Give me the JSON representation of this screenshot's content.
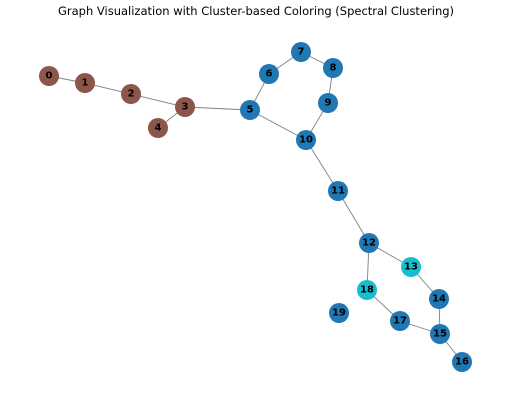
{
  "figure": {
    "title": "Graph Visualization with Cluster-based Coloring (Spectral Clustering)"
  },
  "colors": {
    "cluster_brown": "#8c564b",
    "cluster_blue": "#1f77b4",
    "cluster_cyan": "#17becf",
    "edge": "#808080",
    "label": "#000000"
  },
  "graph": {
    "nodes": [
      {
        "id": "0",
        "cluster": "cluster_brown"
      },
      {
        "id": "1",
        "cluster": "cluster_brown"
      },
      {
        "id": "2",
        "cluster": "cluster_brown"
      },
      {
        "id": "3",
        "cluster": "cluster_brown"
      },
      {
        "id": "4",
        "cluster": "cluster_brown"
      },
      {
        "id": "5",
        "cluster": "cluster_blue"
      },
      {
        "id": "6",
        "cluster": "cluster_blue"
      },
      {
        "id": "7",
        "cluster": "cluster_blue"
      },
      {
        "id": "8",
        "cluster": "cluster_blue"
      },
      {
        "id": "9",
        "cluster": "cluster_blue"
      },
      {
        "id": "10",
        "cluster": "cluster_blue"
      },
      {
        "id": "11",
        "cluster": "cluster_blue"
      },
      {
        "id": "12",
        "cluster": "cluster_blue"
      },
      {
        "id": "13",
        "cluster": "cluster_cyan"
      },
      {
        "id": "14",
        "cluster": "cluster_blue"
      },
      {
        "id": "15",
        "cluster": "cluster_blue"
      },
      {
        "id": "16",
        "cluster": "cluster_blue"
      },
      {
        "id": "17",
        "cluster": "cluster_blue"
      },
      {
        "id": "18",
        "cluster": "cluster_cyan"
      },
      {
        "id": "19",
        "cluster": "cluster_blue"
      }
    ],
    "edges": [
      [
        "0",
        "1"
      ],
      [
        "1",
        "2"
      ],
      [
        "2",
        "3"
      ],
      [
        "3",
        "4"
      ],
      [
        "3",
        "5"
      ],
      [
        "5",
        "6"
      ],
      [
        "6",
        "7"
      ],
      [
        "7",
        "8"
      ],
      [
        "8",
        "9"
      ],
      [
        "9",
        "10"
      ],
      [
        "5",
        "10"
      ],
      [
        "10",
        "11"
      ],
      [
        "11",
        "12"
      ],
      [
        "12",
        "13"
      ],
      [
        "12",
        "18"
      ],
      [
        "13",
        "14"
      ],
      [
        "14",
        "15"
      ],
      [
        "15",
        "16"
      ],
      [
        "15",
        "17"
      ],
      [
        "17",
        "18"
      ]
    ]
  }
}
